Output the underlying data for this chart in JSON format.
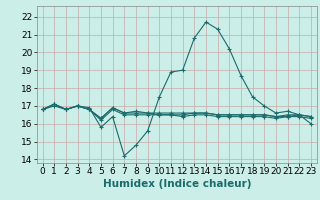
{
  "title": "",
  "xlabel": "Humidex (Indice chaleur)",
  "background_color": "#cceee8",
  "grid_color": "#c8aaaa",
  "line_color": "#1a6b6b",
  "xlim": [
    -0.5,
    23.5
  ],
  "ylim": [
    13.8,
    22.6
  ],
  "yticks": [
    14,
    15,
    16,
    17,
    18,
    19,
    20,
    21,
    22
  ],
  "xticks": [
    0,
    1,
    2,
    3,
    4,
    5,
    6,
    7,
    8,
    9,
    10,
    11,
    12,
    13,
    14,
    15,
    16,
    17,
    18,
    19,
    20,
    21,
    22,
    23
  ],
  "series": [
    [
      16.8,
      17.0,
      16.8,
      17.0,
      16.9,
      15.8,
      16.4,
      14.2,
      14.8,
      15.6,
      17.5,
      18.9,
      19.0,
      20.8,
      21.7,
      21.3,
      20.2,
      18.7,
      17.5,
      17.0,
      16.6,
      16.7,
      16.5,
      16.0
    ],
    [
      16.8,
      17.1,
      16.8,
      17.0,
      16.8,
      16.3,
      16.9,
      16.6,
      16.6,
      16.6,
      16.5,
      16.5,
      16.5,
      16.6,
      16.6,
      16.5,
      16.5,
      16.5,
      16.5,
      16.5,
      16.4,
      16.4,
      16.5,
      16.4
    ],
    [
      16.8,
      17.1,
      16.8,
      17.0,
      16.8,
      16.3,
      16.9,
      16.6,
      16.7,
      16.6,
      16.6,
      16.6,
      16.6,
      16.6,
      16.6,
      16.5,
      16.5,
      16.5,
      16.5,
      16.5,
      16.4,
      16.5,
      16.5,
      16.4
    ],
    [
      16.8,
      17.1,
      16.8,
      17.0,
      16.8,
      16.2,
      16.8,
      16.5,
      16.5,
      16.5,
      16.5,
      16.5,
      16.4,
      16.5,
      16.5,
      16.4,
      16.4,
      16.4,
      16.4,
      16.4,
      16.3,
      16.4,
      16.4,
      16.3
    ]
  ],
  "tick_fontsize": 6.5,
  "xlabel_fontsize": 7.5,
  "marker_size": 3,
  "linewidth": 0.8
}
